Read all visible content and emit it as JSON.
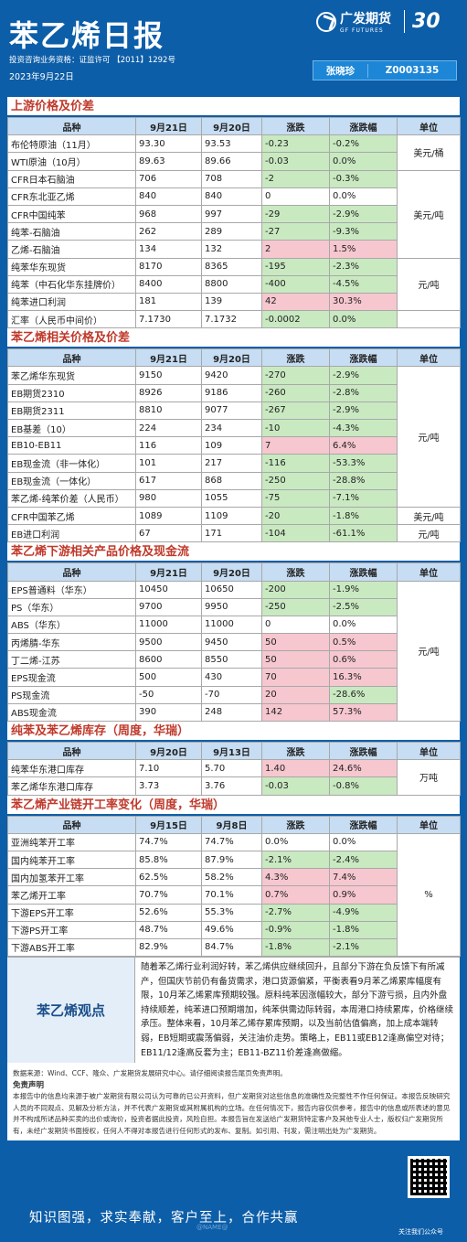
{
  "header": {
    "title": "苯乙烯日报",
    "logo_cn": "广发期货",
    "logo_en": "GF FUTURES",
    "logo_badge": "30",
    "license": "投资咨询业务资格：证监许可 【2011】1292号",
    "date": "2023年9月22日",
    "analyst_name": "张晓珍",
    "analyst_code": "Z0003135"
  },
  "sections": [
    {
      "title": "上游价格及价差",
      "headers": [
        "品种",
        "9月21日",
        "9月20日",
        "涨跌",
        "涨跌幅",
        "单位"
      ],
      "rows": [
        {
          "name": "布伦特原油（11月）",
          "a": "93.30",
          "b": "93.53",
          "chg": "-0.23",
          "pct": "-0.2%",
          "sign": "neg"
        },
        {
          "name": "WTI原油（10月）",
          "a": "89.63",
          "b": "89.66",
          "chg": "-0.03",
          "pct": "0.0%",
          "sign": "neg"
        },
        {
          "name": "CFR日本石脑油",
          "a": "706",
          "b": "708",
          "chg": "-2",
          "pct": "-0.3%",
          "sign": "neg"
        },
        {
          "name": "CFR东北亚乙烯",
          "a": "840",
          "b": "840",
          "chg": "0",
          "pct": "0.0%",
          "sign": "none"
        },
        {
          "name": "CFR中国纯苯",
          "a": "968",
          "b": "997",
          "chg": "-29",
          "pct": "-2.9%",
          "sign": "neg"
        },
        {
          "name": "纯苯-石脑油",
          "a": "262",
          "b": "289",
          "chg": "-27",
          "pct": "-9.3%",
          "sign": "neg"
        },
        {
          "name": "乙烯-石脑油",
          "a": "134",
          "b": "132",
          "chg": "2",
          "pct": "1.5%",
          "sign": "pos"
        },
        {
          "name": "纯苯华东现货",
          "a": "8170",
          "b": "8365",
          "chg": "-195",
          "pct": "-2.3%",
          "sign": "neg"
        },
        {
          "name": "纯苯（中石化华东挂牌价）",
          "a": "8400",
          "b": "8800",
          "chg": "-400",
          "pct": "-4.5%",
          "sign": "neg"
        },
        {
          "name": "纯苯进口利润",
          "a": "181",
          "b": "139",
          "chg": "42",
          "pct": "30.3%",
          "sign": "pos"
        },
        {
          "name": "汇率（人民币中间价）",
          "a": "7.1730",
          "b": "7.1732",
          "chg": "-0.0002",
          "pct": "0.0%",
          "sign": "neg"
        }
      ],
      "units": [
        {
          "text": "美元/桶",
          "span": 2
        },
        {
          "text": "美元/吨",
          "span": 5
        },
        {
          "text": "元/吨",
          "span": 3
        },
        {
          "text": "",
          "span": 1
        }
      ]
    },
    {
      "title": "苯乙烯相关价格及价差",
      "headers": [
        "品种",
        "9月21日",
        "9月20日",
        "涨跌",
        "涨跌幅",
        "单位"
      ],
      "rows": [
        {
          "name": "苯乙烯华东现货",
          "a": "9150",
          "b": "9420",
          "chg": "-270",
          "pct": "-2.9%",
          "sign": "neg"
        },
        {
          "name": "EB期货2310",
          "a": "8926",
          "b": "9186",
          "chg": "-260",
          "pct": "-2.8%",
          "sign": "neg"
        },
        {
          "name": "EB期货2311",
          "a": "8810",
          "b": "9077",
          "chg": "-267",
          "pct": "-2.9%",
          "sign": "neg"
        },
        {
          "name": "EB基差（10）",
          "a": "224",
          "b": "234",
          "chg": "-10",
          "pct": "-4.3%",
          "sign": "neg"
        },
        {
          "name": "EB10-EB11",
          "a": "116",
          "b": "109",
          "chg": "7",
          "pct": "6.4%",
          "sign": "pos"
        },
        {
          "name": "EB现金流（非一体化）",
          "a": "101",
          "b": "217",
          "chg": "-116",
          "pct": "-53.3%",
          "sign": "neg"
        },
        {
          "name": "EB现金流（一体化）",
          "a": "617",
          "b": "868",
          "chg": "-250",
          "pct": "-28.8%",
          "sign": "neg"
        },
        {
          "name": "苯乙烯-纯苯价差（人民币）",
          "a": "980",
          "b": "1055",
          "chg": "-75",
          "pct": "-7.1%",
          "sign": "neg"
        },
        {
          "name": "CFR中国苯乙烯",
          "a": "1089",
          "b": "1109",
          "chg": "-20",
          "pct": "-1.8%",
          "sign": "neg"
        },
        {
          "name": "EB进口利润",
          "a": "67",
          "b": "171",
          "chg": "-104",
          "pct": "-61.1%",
          "sign": "neg"
        }
      ],
      "units": [
        {
          "text": "元/吨",
          "span": 8
        },
        {
          "text": "美元/吨",
          "span": 1
        },
        {
          "text": "元/吨",
          "span": 1
        }
      ]
    },
    {
      "title": "苯乙烯下游相关产品价格及现金流",
      "headers": [
        "品种",
        "9月21日",
        "9月20日",
        "涨跌",
        "涨跌幅",
        "单位"
      ],
      "rows": [
        {
          "name": "EPS普通料（华东）",
          "a": "10450",
          "b": "10650",
          "chg": "-200",
          "pct": "-1.9%",
          "sign": "neg"
        },
        {
          "name": "PS（华东）",
          "a": "9700",
          "b": "9950",
          "chg": "-250",
          "pct": "-2.5%",
          "sign": "neg"
        },
        {
          "name": "ABS（华东）",
          "a": "11000",
          "b": "11000",
          "chg": "0",
          "pct": "0.0%",
          "sign": "none"
        },
        {
          "name": "丙烯腈-华东",
          "a": "9500",
          "b": "9450",
          "chg": "50",
          "pct": "0.5%",
          "sign": "pos"
        },
        {
          "name": "丁二烯-江苏",
          "a": "8600",
          "b": "8550",
          "chg": "50",
          "pct": "0.6%",
          "sign": "pos"
        },
        {
          "name": "EPS现金流",
          "a": "500",
          "b": "430",
          "chg": "70",
          "pct": "16.3%",
          "sign": "pos"
        },
        {
          "name": "PS现金流",
          "a": "-50",
          "b": "-70",
          "chg": "20",
          "pct": "-28.6%",
          "sign": "mixed"
        },
        {
          "name": "ABS现金流",
          "a": "390",
          "b": "248",
          "chg": "142",
          "pct": "57.3%",
          "sign": "pos"
        }
      ],
      "units": [
        {
          "text": "元/吨",
          "span": 8
        }
      ]
    },
    {
      "title": "纯苯及苯乙烯库存（周度，华瑞）",
      "headers": [
        "品种",
        "9月20日",
        "9月13日",
        "涨跌",
        "涨跌幅",
        "单位"
      ],
      "rows": [
        {
          "name": "纯苯华东港口库存",
          "a": "7.10",
          "b": "5.70",
          "chg": "1.40",
          "pct": "24.6%",
          "sign": "pos"
        },
        {
          "name": "苯乙烯华东港口库存",
          "a": "3.73",
          "b": "3.76",
          "chg": "-0.03",
          "pct": "-0.8%",
          "sign": "neg"
        }
      ],
      "units": [
        {
          "text": "万吨",
          "span": 2
        }
      ]
    },
    {
      "title": "苯乙烯产业链开工率变化（周度，华瑞）",
      "headers": [
        "品种",
        "9月15日",
        "9月8日",
        "涨跌",
        "涨跌幅",
        "单位"
      ],
      "rows": [
        {
          "name": "亚洲纯苯开工率",
          "a": "74.7%",
          "b": "74.7%",
          "chg": "0.0%",
          "pct": "0.0%",
          "sign": "none"
        },
        {
          "name": "国内纯苯开工率",
          "a": "85.8%",
          "b": "87.9%",
          "chg": "-2.1%",
          "pct": "-2.4%",
          "sign": "neg"
        },
        {
          "name": "国内加氢苯开工率",
          "a": "62.5%",
          "b": "58.2%",
          "chg": "4.3%",
          "pct": "7.4%",
          "sign": "pos"
        },
        {
          "name": "苯乙烯开工率",
          "a": "70.7%",
          "b": "70.1%",
          "chg": "0.7%",
          "pct": "0.9%",
          "sign": "pos"
        },
        {
          "name": "下游EPS开工率",
          "a": "52.6%",
          "b": "55.3%",
          "chg": "-2.7%",
          "pct": "-4.9%",
          "sign": "neg"
        },
        {
          "name": "下游PS开工率",
          "a": "48.7%",
          "b": "49.6%",
          "chg": "-0.9%",
          "pct": "-1.8%",
          "sign": "neg"
        },
        {
          "name": "下游ABS开工率",
          "a": "82.9%",
          "b": "84.7%",
          "chg": "-1.8%",
          "pct": "-2.1%",
          "sign": "neg"
        }
      ],
      "units": [
        {
          "text": "%",
          "span": 7
        }
      ]
    }
  ],
  "view": {
    "label": "苯乙烯观点",
    "text": "随着苯乙烯行业利润好转，苯乙烯供应继续回升，且部分下游在负反馈下有所减产，但国庆节前仍有备货需求，港口货源偏紧，平衡表看9月苯乙烯累库幅度有限，10月苯乙烯累库预期较强。原料纯苯因涨幅较大，部分下游亏损，且内外盘持续顺差，纯苯进口预期增加，纯苯供需边际转弱，本周港口持续累库，价格继续承压。整体来看，10月苯乙烯存累库预期，以及当前估值偏高，加上成本端转弱，EB短期或震荡偏弱，关注油价走势。策略上，EB11或EB12逢高偏空对待；EB11/12逢高反套为主；EB11-BZ11价差逢高做缩。"
  },
  "notes": {
    "source": "数据来源：Wind、CCF、隆众、广发期货发展研究中心。请仔细阅读报告尾页免责声明。",
    "disclaimer_title": "免责声明",
    "disclaimer": "本报告中的信息均来源于被广发期货有限公司认为可靠的已公开资料，但广发期货对这些信息的准确性及完整性不作任何保证。本报告反映研究人员的不同观点、见解及分析方法，并不代表广发期货或其附属机构的立场。在任何情况下，报告内容仅供参考，报告中的信息或所表述的意见并不构成所述品种买卖的出价或询价，投资者据此投资，风险自担。本报告旨在发送给广发期货特定客户及其他专业人士，版权归广发期货所有，未经广发期货书面授权，任何人不得对本报告进行任何形式的发布、复制。如引用、刊发，需注明出处为广发期货。"
  },
  "footer": {
    "slogan": "知识图强，求实奉献，客户至上，合作共赢",
    "qr_caption": "关注我们公众号",
    "watermark": "@NAME@"
  }
}
